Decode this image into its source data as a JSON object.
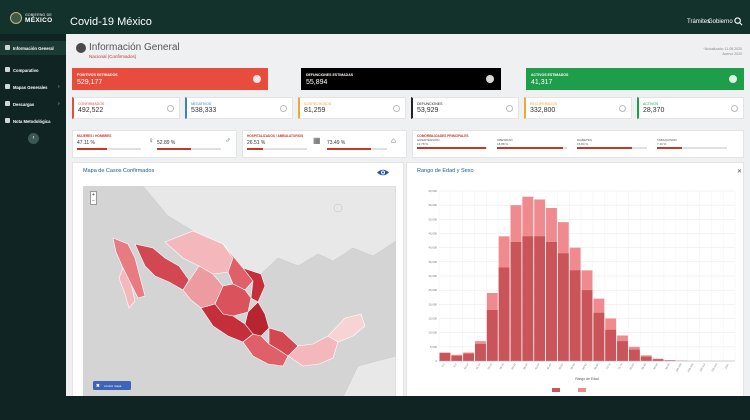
{
  "header": {
    "gov_logo_line1": "GOBIERNO DE",
    "gov_logo_line2": "MÉXICO",
    "app_title": "Covid-19 México",
    "nav": [
      "Trámites",
      "Gobierno"
    ]
  },
  "sidebar": {
    "items": [
      {
        "label": "Información General",
        "icon": "info-icon",
        "active": true
      },
      {
        "label": "Comparativo",
        "icon": "compare-icon"
      },
      {
        "label": "Mapas Generales",
        "icon": "map-icon"
      },
      {
        "label": "Descargas",
        "icon": "download-icon"
      },
      {
        "label": "Nota Metodológica",
        "icon": "document-icon"
      }
    ],
    "collapse_glyph": "‹"
  },
  "page": {
    "title": "Información General",
    "subtitle": "Nacional (Confirmados)",
    "update_line1": "*Actualizado: 11.08.2020",
    "update_line2": "Acervo 2020"
  },
  "big_cards": [
    {
      "label": "POSITIVOS ESTIMADOS",
      "value": "529,177",
      "color": "#e74c3c",
      "icon": "plus-icon"
    },
    {
      "label": "DEFUNCIONES ESTIMADAS",
      "value": "55,894",
      "color": "#000000",
      "icon": "ribbon-icon"
    },
    {
      "label": "ACTIVOS ESTIMADOS",
      "value": "41,317",
      "color": "#1e9e4a",
      "icon": "bed-icon"
    }
  ],
  "stat_cards": [
    {
      "label": "CONFIRMADOS",
      "value": "492,522",
      "color": "#e74c3c"
    },
    {
      "label": "NEGATIVOS",
      "value": "538,333",
      "color": "#3b82c4"
    },
    {
      "label": "SOSPECHOSOS",
      "value": "81,259",
      "color": "#f0a830"
    },
    {
      "label": "DEFUNCIONES",
      "value": "53,929",
      "color": "#222222"
    },
    {
      "label": "RECUPERADOS",
      "value": "332,800",
      "color": "#f0a830"
    },
    {
      "label": "ACTIVOS",
      "value": "28,370",
      "color": "#1e9e4a"
    }
  ],
  "demographics": {
    "sex": {
      "title": "MUJERES / HOMBRES",
      "female": "47.11 %",
      "male": "52.89 %",
      "female_pct": 47.11,
      "male_pct": 52.89
    },
    "care": {
      "title": "HOSPITALIZADOS / AMBULATORIOS",
      "hosp": "26.51 %",
      "amb": "73.49 %",
      "hosp_pct": 26.51,
      "amb_pct": 73.49
    },
    "comorbidities": {
      "title": "COMORBILIDADES PRINCIPALES",
      "items": [
        {
          "name": "HIPERTENSIÓN",
          "value": "19.78 %",
          "pct": 19.78
        },
        {
          "name": "OBESIDAD",
          "value": "18.88 %",
          "pct": 18.88
        },
        {
          "name": "DIABETES",
          "value": "15.84 %",
          "pct": 15.84
        },
        {
          "name": "TABAQUISMO",
          "value": "7.10 %",
          "pct": 7.1
        }
      ]
    }
  },
  "map_panel": {
    "title": "Mapa de Casos Confirmados",
    "zoom_in": "+",
    "zoom_out": "−",
    "control_button": "control mapa",
    "control_glyph": "✖"
  },
  "chart_panel": {
    "title": "Rango de Edad y Sexo"
  },
  "chart_data": {
    "type": "bar",
    "stacked": false,
    "categories": [
      "0-4",
      "5-9",
      "10-14",
      "15-19",
      "20-24",
      "25-29",
      "30-34",
      "35-39",
      "40-44",
      "45-49",
      "50-54",
      "55-59",
      "60-64",
      "65-69",
      "70-74",
      "75-79",
      "80-84",
      "85-89",
      "90-94",
      "95-99",
      "100-104",
      "105-109",
      "110-114",
      "115-119",
      "120+"
    ],
    "series": [
      {
        "color": "#c9545a",
        "values": [
          2800,
          1800,
          2600,
          6000,
          18000,
          33000,
          42000,
          44000,
          44000,
          42000,
          38000,
          32000,
          25000,
          17000,
          11000,
          7000,
          4000,
          1500,
          600,
          200,
          50,
          0,
          0,
          0,
          0
        ]
      },
      {
        "color": "#ef8a8f",
        "values": [
          3000,
          2200,
          3000,
          7000,
          24000,
          44000,
          55000,
          58000,
          57000,
          54000,
          49000,
          40000,
          32000,
          22000,
          15000,
          9000,
          5000,
          2000,
          800,
          300,
          80,
          0,
          0,
          0,
          0
        ]
      }
    ],
    "xlabel": "Rango de Edad",
    "ylim": [
      0,
      60000
    ],
    "yticks": [
      0,
      5000,
      10000,
      15000,
      20000,
      25000,
      30000,
      35000,
      40000,
      45000,
      50000,
      55000,
      60000
    ],
    "grid": true,
    "legend_position": "bottom"
  }
}
